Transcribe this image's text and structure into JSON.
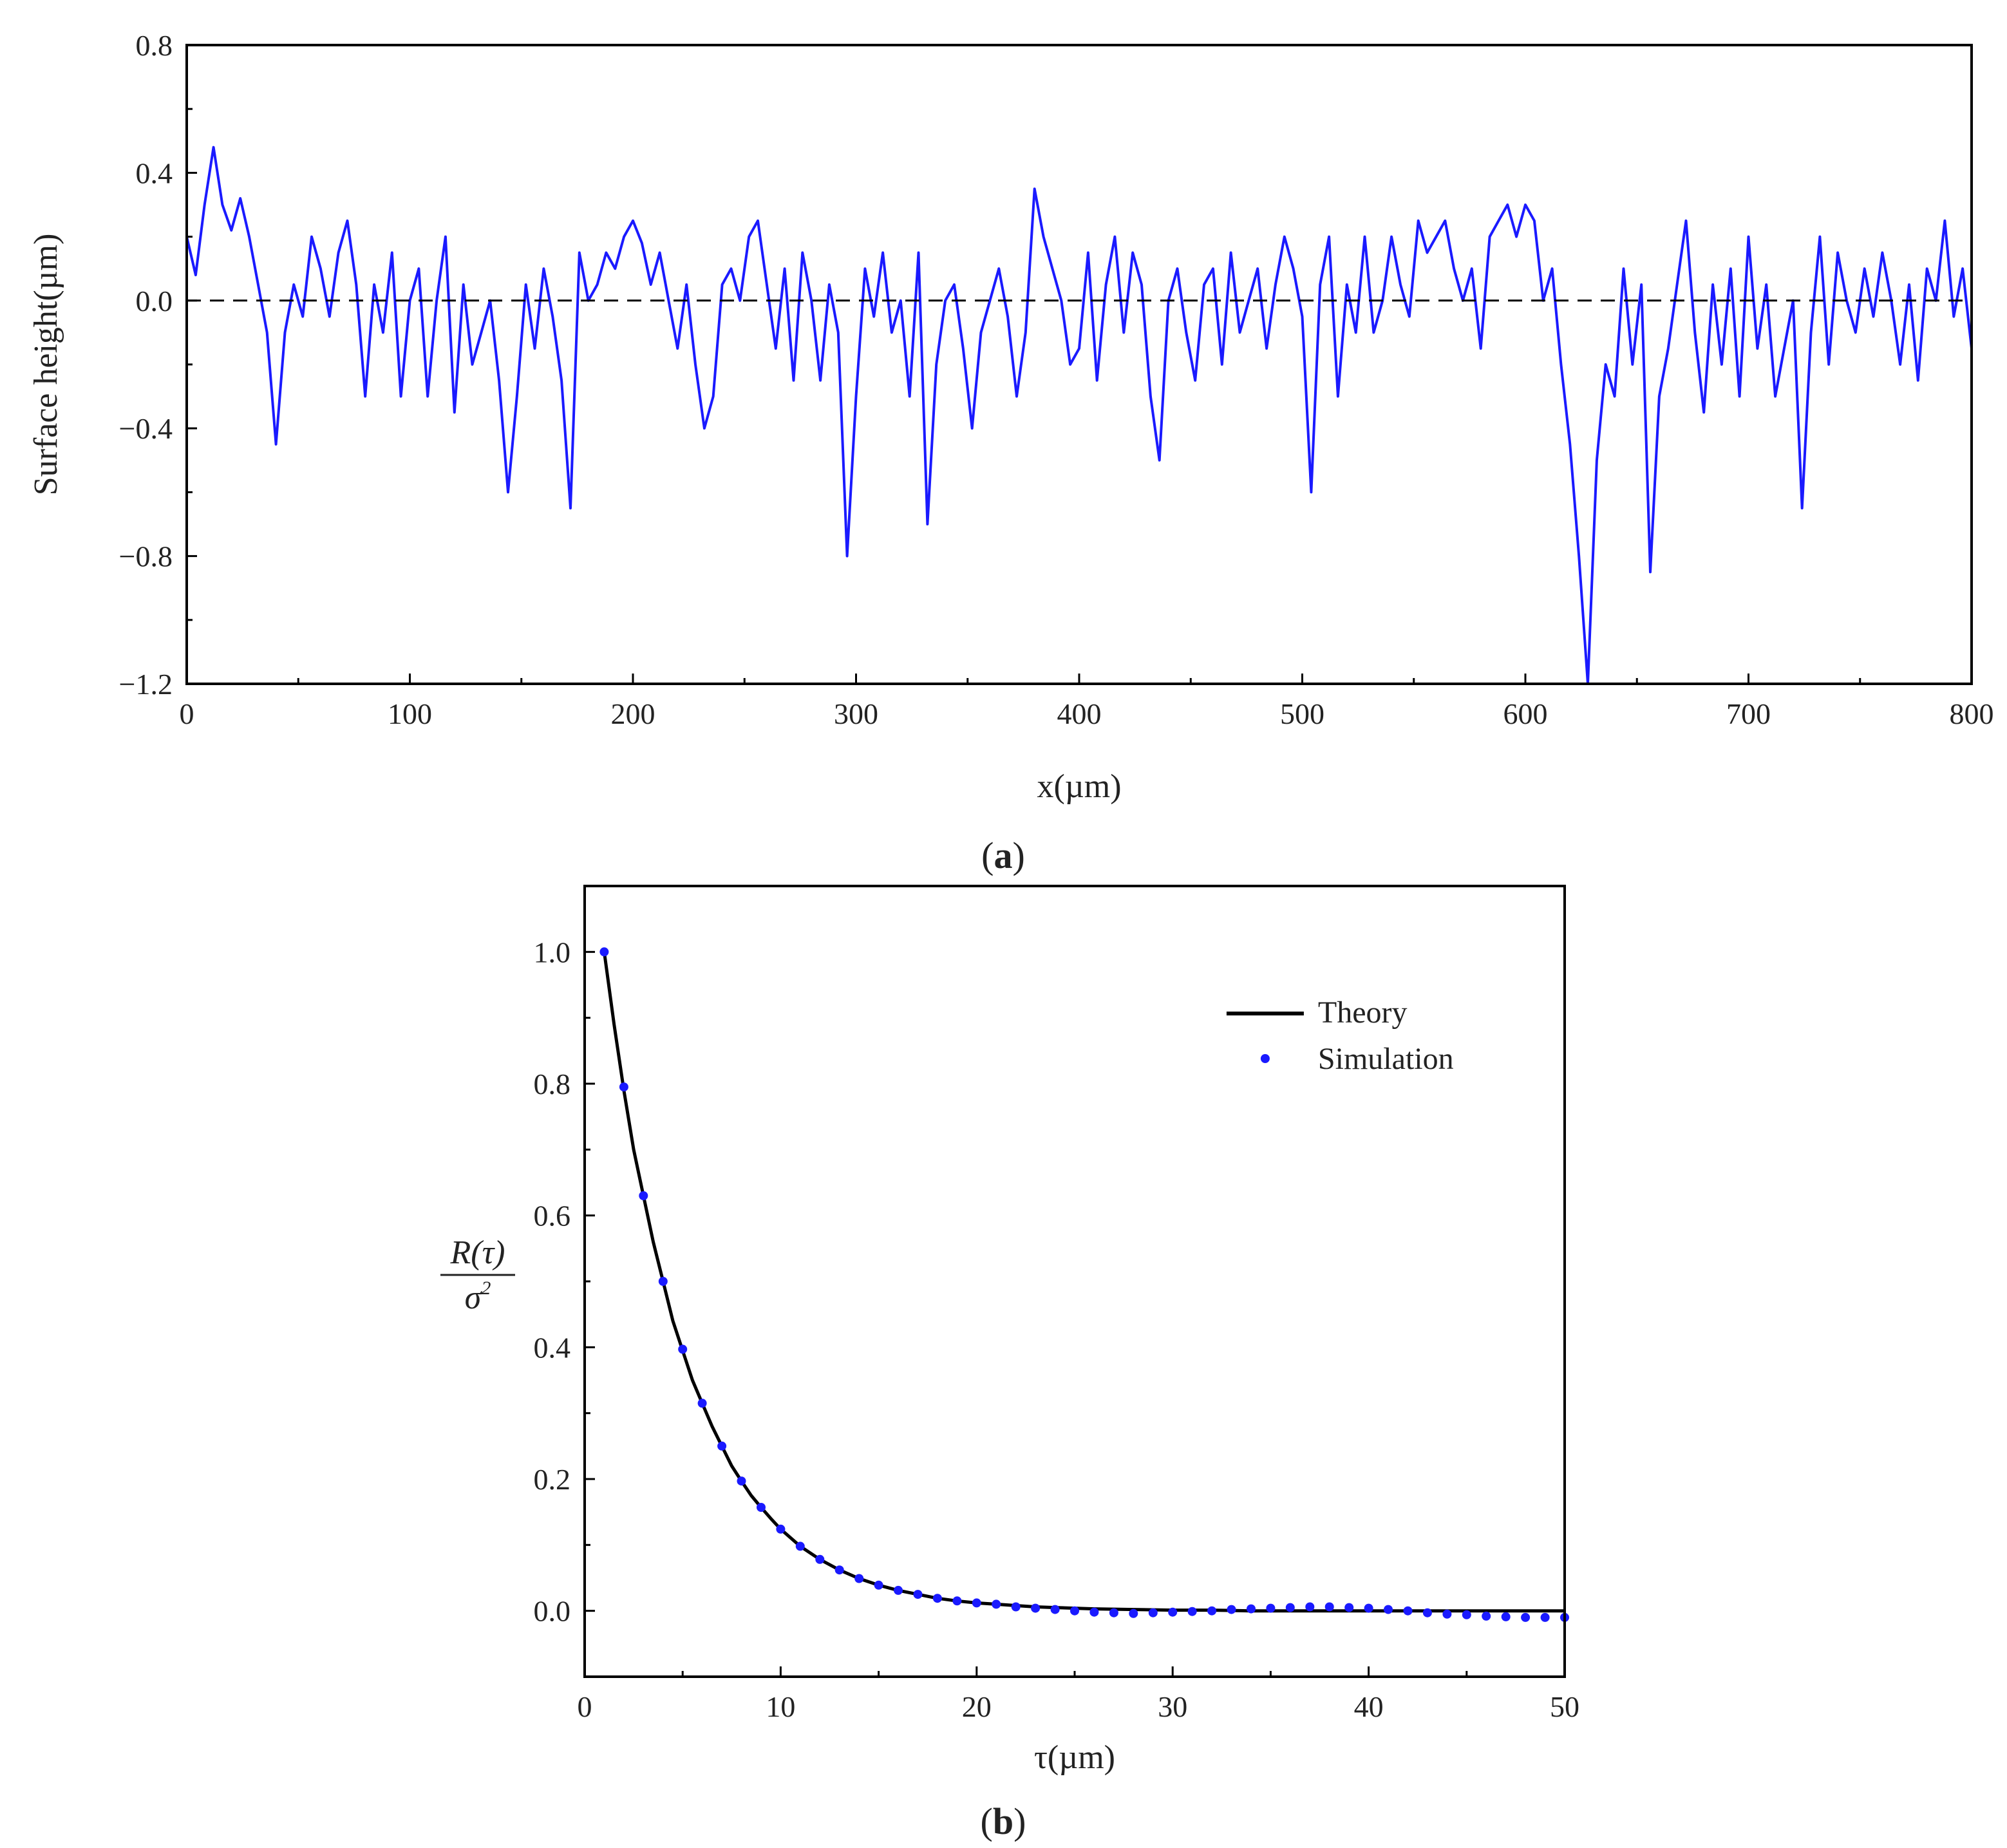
{
  "chart_data": [
    {
      "panel": "(a)",
      "panel_label_parts": [
        "(",
        "a",
        ")"
      ],
      "type": "line",
      "xlabel": "x(µm)",
      "ylabel": "Surface height(µm)",
      "xlim": [
        0,
        800
      ],
      "ylim": [
        -1.2,
        0.8
      ],
      "x_ticks": [
        0,
        100,
        200,
        300,
        400,
        500,
        600,
        700,
        800
      ],
      "x_tick_labels": [
        "0",
        "100",
        "200",
        "300",
        "400",
        "500",
        "600",
        "700",
        "800"
      ],
      "y_ticks": [
        -1.2,
        -0.8,
        -0.4,
        0.0,
        0.4,
        0.8
      ],
      "y_tick_labels": [
        "−1.2",
        "−0.8",
        "−0.4",
        "0.0",
        "0.4",
        "0.8"
      ],
      "reference_line": {
        "y": 0.0,
        "style": "dashed",
        "color": "#000000"
      },
      "series_color": "#1a1aff",
      "series": [
        {
          "x": [
            0,
            4,
            8,
            12,
            16,
            20,
            24,
            28,
            32,
            36,
            40,
            44,
            48,
            52,
            56,
            60,
            64,
            68,
            72,
            76,
            80,
            84,
            88,
            92,
            96,
            100,
            104,
            108,
            112,
            116,
            120,
            124,
            128,
            132,
            136,
            140,
            144,
            148,
            152,
            156,
            160,
            164,
            168,
            172,
            176,
            180,
            184,
            188,
            192,
            196,
            200,
            204,
            208,
            212,
            216,
            220,
            224,
            228,
            232,
            236,
            240,
            244,
            248,
            252,
            256,
            260,
            264,
            268,
            272,
            276,
            280,
            284,
            288,
            292,
            296,
            300,
            304,
            308,
            312,
            316,
            320,
            324,
            328,
            332,
            336,
            340,
            344,
            348,
            352,
            356,
            360,
            364,
            368,
            372,
            376,
            380,
            384,
            388,
            392,
            396,
            400,
            404,
            408,
            412,
            416,
            420,
            424,
            428,
            432,
            436,
            440,
            444,
            448,
            452,
            456,
            460,
            464,
            468,
            472,
            476,
            480,
            484,
            488,
            492,
            496,
            500,
            504,
            508,
            512,
            516,
            520,
            524,
            528,
            532,
            536,
            540,
            544,
            548,
            552,
            556,
            560,
            564,
            568,
            572,
            576,
            580,
            584,
            588,
            592,
            596,
            600,
            604,
            608,
            612,
            616,
            620,
            624,
            628,
            632,
            636,
            640,
            644,
            648,
            652,
            656,
            660,
            664,
            668,
            672,
            676,
            680,
            684,
            688,
            692,
            696,
            700,
            704,
            708,
            712,
            716,
            720,
            724,
            728,
            732,
            736,
            740,
            744,
            748,
            752,
            756,
            760,
            764,
            768,
            772,
            776,
            780,
            784,
            788,
            792,
            796,
            800
          ],
          "y": [
            0.2,
            0.08,
            0.3,
            0.48,
            0.3,
            0.22,
            0.32,
            0.2,
            0.05,
            -0.1,
            -0.45,
            -0.1,
            0.05,
            -0.05,
            0.2,
            0.1,
            -0.05,
            0.15,
            0.25,
            0.05,
            -0.3,
            0.05,
            -0.1,
            0.15,
            -0.3,
            0.0,
            0.1,
            -0.3,
            0.0,
            0.2,
            -0.35,
            0.05,
            -0.2,
            -0.1,
            0.0,
            -0.25,
            -0.6,
            -0.3,
            0.05,
            -0.15,
            0.1,
            -0.05,
            -0.25,
            -0.65,
            0.15,
            0.0,
            0.05,
            0.15,
            0.1,
            0.2,
            0.25,
            0.18,
            0.05,
            0.15,
            0.0,
            -0.15,
            0.05,
            -0.2,
            -0.4,
            -0.3,
            0.05,
            0.1,
            0.0,
            0.2,
            0.25,
            0.05,
            -0.15,
            0.1,
            -0.25,
            0.15,
            0.0,
            -0.25,
            0.05,
            -0.1,
            -0.8,
            -0.3,
            0.1,
            -0.05,
            0.15,
            -0.1,
            0.0,
            -0.3,
            0.15,
            -0.7,
            -0.2,
            0.0,
            0.05,
            -0.15,
            -0.4,
            -0.1,
            0.0,
            0.1,
            -0.05,
            -0.3,
            -0.1,
            0.35,
            0.2,
            0.1,
            0.0,
            -0.2,
            -0.15,
            0.15,
            -0.25,
            0.05,
            0.2,
            -0.1,
            0.15,
            0.05,
            -0.3,
            -0.5,
            0.0,
            0.1,
            -0.1,
            -0.25,
            0.05,
            0.1,
            -0.2,
            0.15,
            -0.1,
            0.0,
            0.1,
            -0.15,
            0.05,
            0.2,
            0.1,
            -0.05,
            -0.6,
            0.05,
            0.2,
            -0.3,
            0.05,
            -0.1,
            0.2,
            -0.1,
            0.0,
            0.2,
            0.05,
            -0.05,
            0.25,
            0.15,
            0.2,
            0.25,
            0.1,
            0.0,
            0.1,
            -0.15,
            0.2,
            0.25,
            0.3,
            0.2,
            0.3,
            0.25,
            0.0,
            0.1,
            -0.2,
            -0.45,
            -0.8,
            -1.2,
            -0.5,
            -0.2,
            -0.3,
            0.1,
            -0.2,
            0.05,
            -0.85,
            -0.3,
            -0.15,
            0.05,
            0.25,
            -0.1,
            -0.35,
            0.05,
            -0.2,
            0.1,
            -0.3,
            0.2,
            -0.15,
            0.05,
            -0.3,
            -0.15,
            0.0,
            -0.65,
            -0.1,
            0.2,
            -0.2,
            0.15,
            0.0,
            -0.1,
            0.1,
            -0.05,
            0.15,
            0.0,
            -0.2,
            0.05,
            -0.25,
            0.1,
            0.0,
            0.25,
            -0.05,
            0.1,
            -0.15
          ]
        }
      ]
    },
    {
      "panel": "(b)",
      "panel_label_parts": [
        "(",
        "b",
        ")"
      ],
      "type": "line",
      "xlabel": "τ(µm)",
      "ylabel": {
        "numerator": "R(τ)",
        "denominator_base": "σ",
        "denominator_sup": "2"
      },
      "xlim": [
        0,
        50
      ],
      "ylim": [
        -0.1,
        1.1
      ],
      "x_ticks": [
        0,
        10,
        20,
        30,
        40,
        50
      ],
      "x_tick_labels": [
        "0",
        "10",
        "20",
        "30",
        "40",
        "50"
      ],
      "y_ticks": [
        0.0,
        0.2,
        0.4,
        0.6,
        0.8,
        1.0
      ],
      "y_tick_labels": [
        "0.0",
        "0.2",
        "0.4",
        "0.6",
        "0.8",
        "1.0"
      ],
      "legend": {
        "placement": "top-right"
      },
      "series": [
        {
          "name": "Theory",
          "style": "line",
          "color": "#000000",
          "x": [
            1,
            1.5,
            2,
            2.5,
            3,
            3.5,
            4,
            4.5,
            5,
            5.5,
            6,
            6.5,
            7,
            7.5,
            8,
            8.5,
            9,
            9.5,
            10,
            11,
            12,
            13,
            14,
            15,
            16,
            17,
            18,
            19,
            20,
            21,
            22,
            23,
            24,
            25,
            26,
            28,
            30,
            32,
            34,
            36,
            38,
            40,
            42,
            44,
            46,
            48,
            50
          ],
          "y": [
            1.0,
            0.89,
            0.79,
            0.7,
            0.63,
            0.56,
            0.5,
            0.44,
            0.395,
            0.35,
            0.315,
            0.28,
            0.25,
            0.22,
            0.197,
            0.175,
            0.157,
            0.14,
            0.124,
            0.098,
            0.078,
            0.062,
            0.049,
            0.039,
            0.031,
            0.025,
            0.019,
            0.015,
            0.012,
            0.01,
            0.008,
            0.006,
            0.005,
            0.004,
            0.003,
            0.002,
            0.001,
            0.001,
            0.0,
            0.0,
            0.0,
            0.0,
            0.0,
            0.0,
            0.0,
            0.0,
            0.0
          ]
        },
        {
          "name": "Simulation",
          "style": "markers",
          "color": "#1a1aff",
          "x": [
            1,
            2,
            3,
            4,
            5,
            6,
            7,
            8,
            9,
            10,
            11,
            12,
            13,
            14,
            15,
            16,
            17,
            18,
            19,
            20,
            21,
            22,
            23,
            24,
            25,
            26,
            27,
            28,
            29,
            30,
            31,
            32,
            33,
            34,
            35,
            36,
            37,
            38,
            39,
            40,
            41,
            42,
            43,
            44,
            45,
            46,
            47,
            48,
            49,
            50
          ],
          "y": [
            1.0,
            0.795,
            0.63,
            0.5,
            0.397,
            0.315,
            0.25,
            0.197,
            0.157,
            0.124,
            0.098,
            0.078,
            0.062,
            0.049,
            0.039,
            0.031,
            0.025,
            0.019,
            0.015,
            0.012,
            0.01,
            0.006,
            0.004,
            0.002,
            0.0,
            -0.002,
            -0.003,
            -0.004,
            -0.003,
            -0.002,
            -0.001,
            0.0,
            0.002,
            0.003,
            0.004,
            0.005,
            0.006,
            0.006,
            0.005,
            0.004,
            0.002,
            0.0,
            -0.003,
            -0.005,
            -0.006,
            -0.008,
            -0.009,
            -0.01,
            -0.01,
            -0.01
          ]
        }
      ]
    }
  ]
}
